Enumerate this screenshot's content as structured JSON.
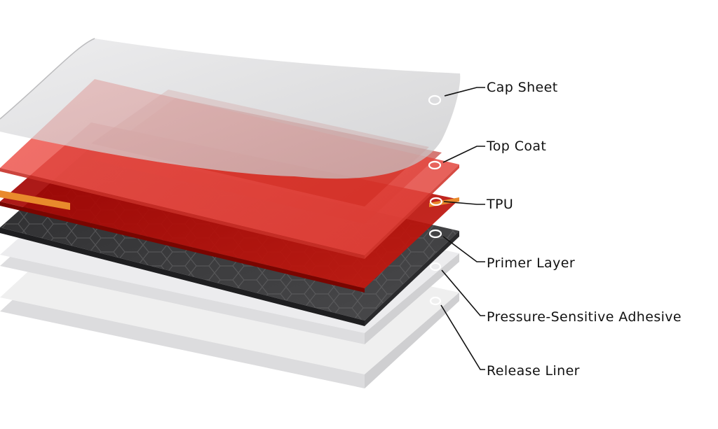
{
  "layers": [
    {
      "label": "Cap Sheet"
    },
    {
      "label": "Top Coat"
    },
    {
      "label": "TPU"
    },
    {
      "label": "Primer Layer"
    },
    {
      "label": "Pressure-Sensitive Adhesive"
    },
    {
      "label": "Release Liner"
    }
  ],
  "colors": {
    "cap_sheet": "#d9d9db",
    "top_coat": "#e23b33",
    "tpu_edge": "#e98a2c",
    "primer": "#3b3b3d",
    "adhesive": "#e4e4e6",
    "release_liner": "#e8e8ea",
    "label_text": "#111111"
  }
}
